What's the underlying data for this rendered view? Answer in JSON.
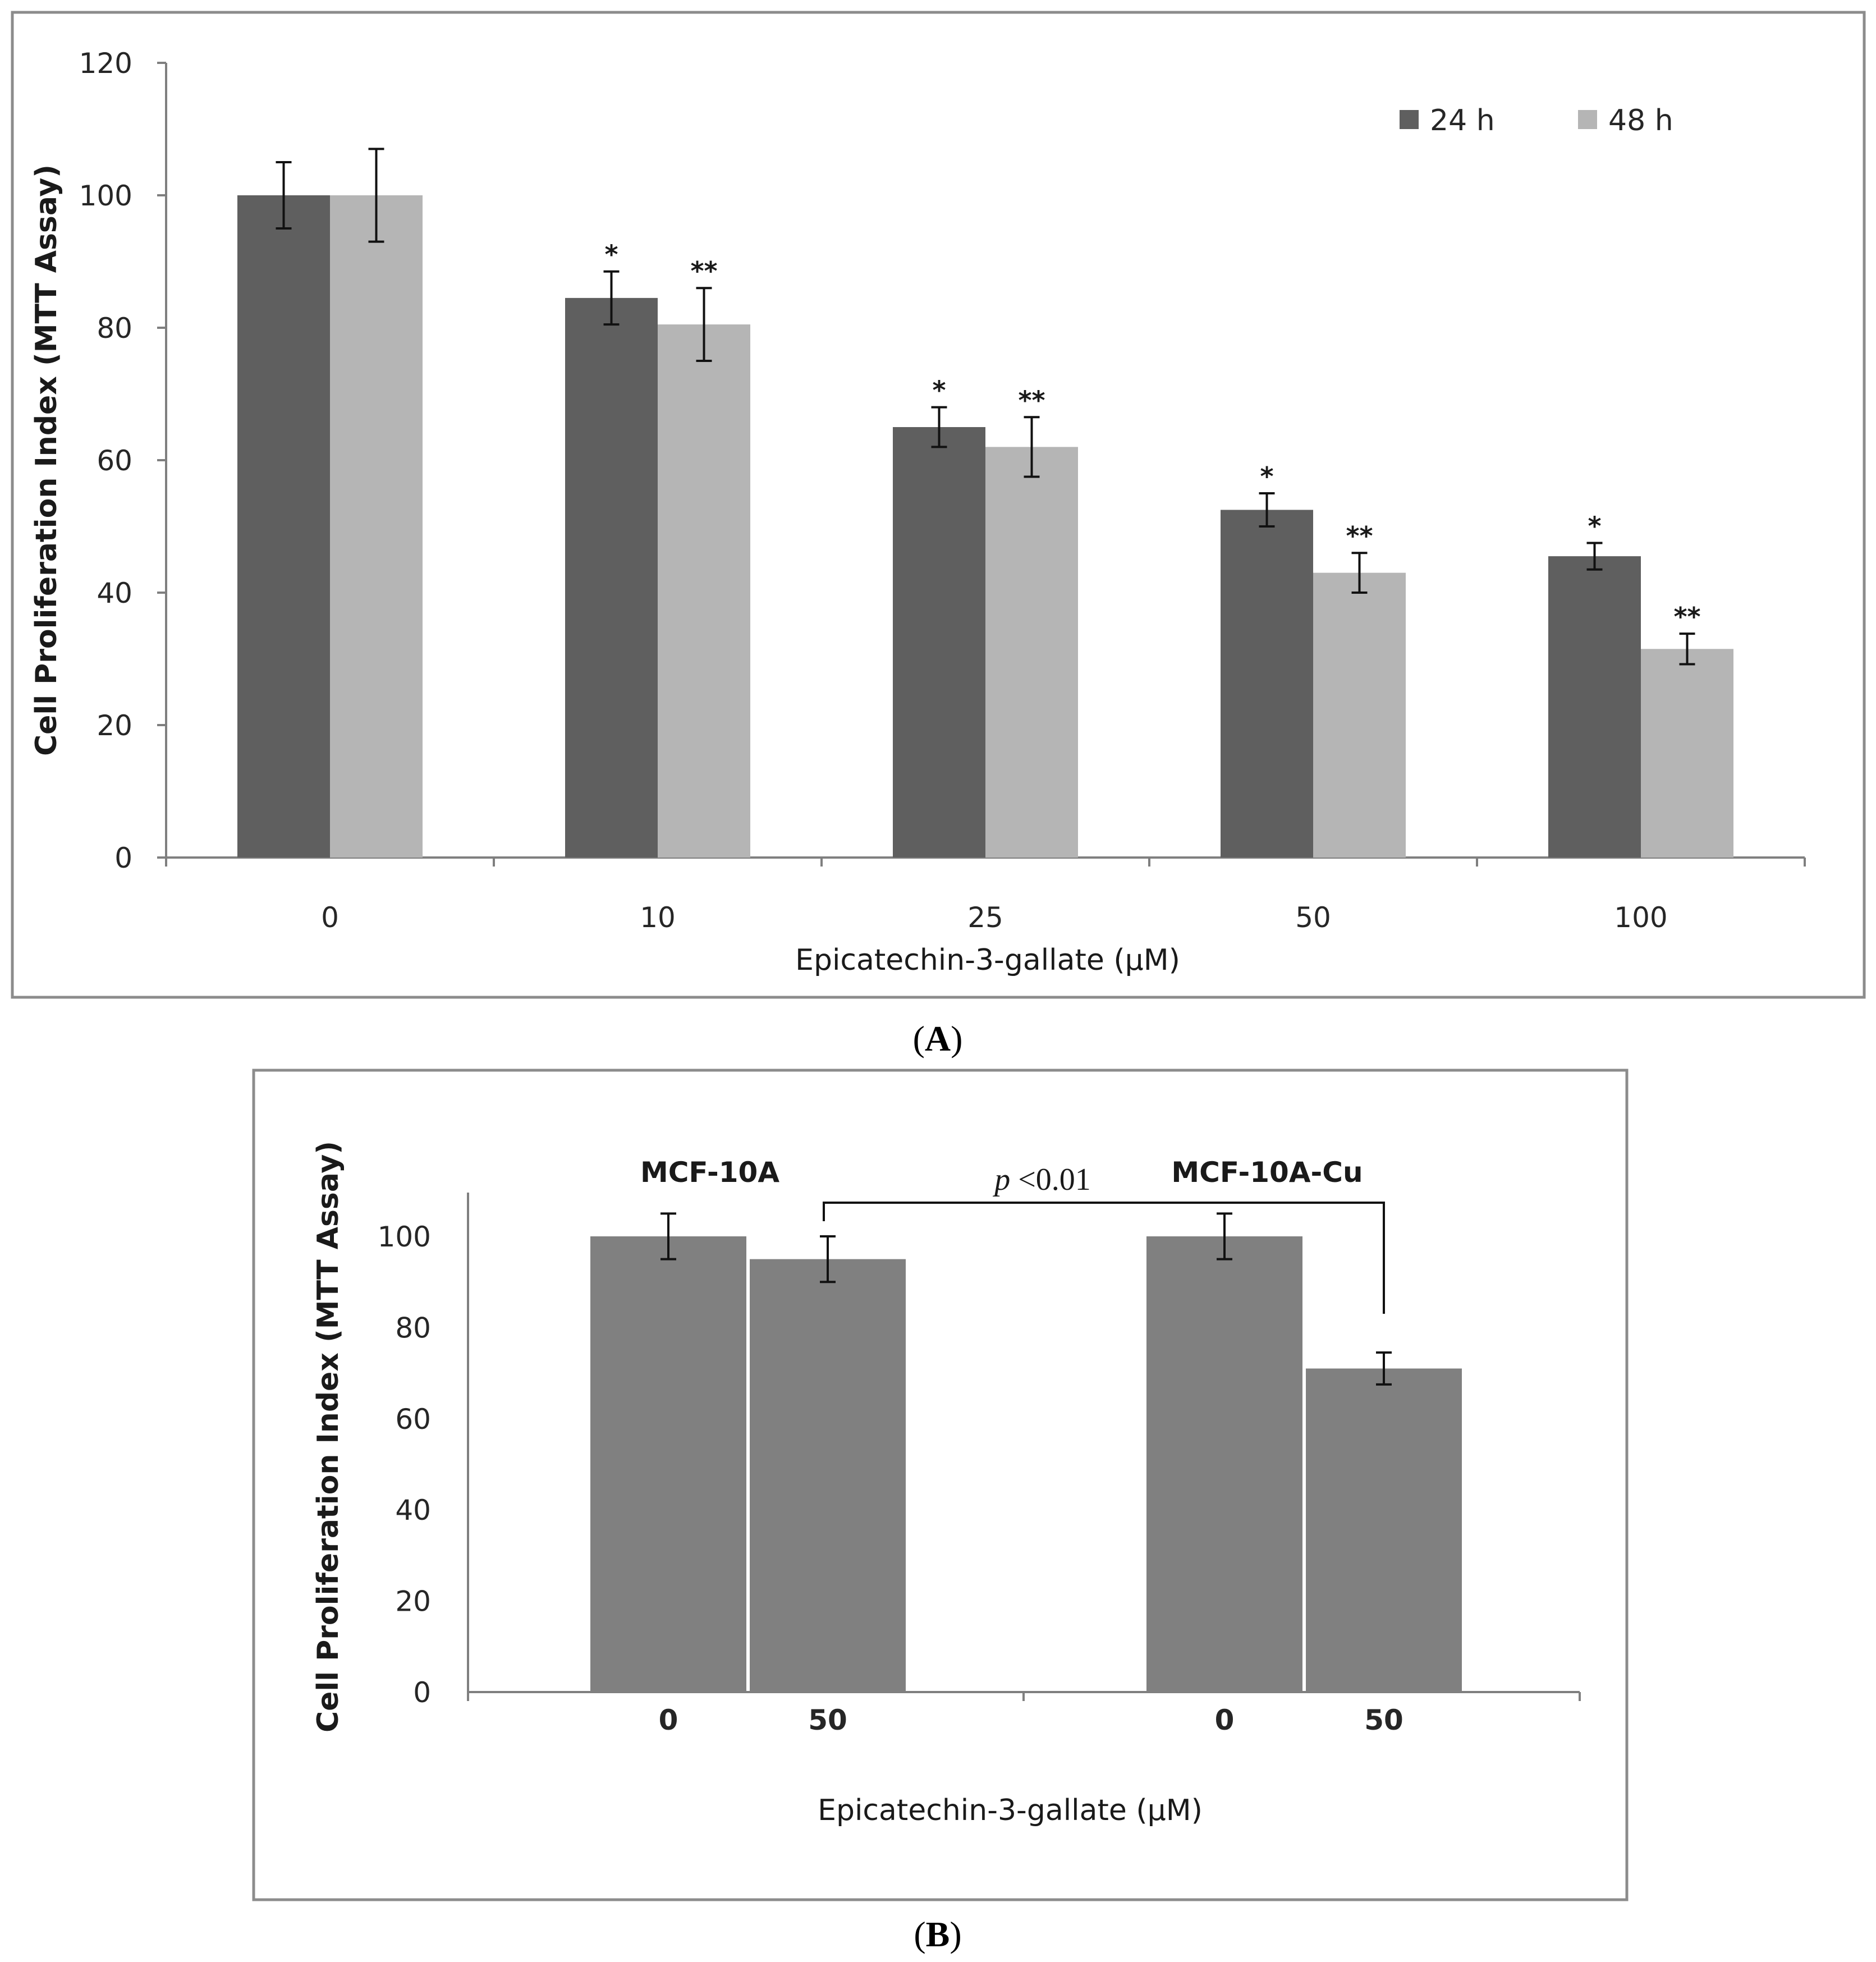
{
  "chart_data": [
    {
      "type": "bar",
      "panel": "A",
      "caption_letter": "A",
      "ylabel": "Cell Proliferation Index (MTT Assay)",
      "xlabel": "Epicatechin-3-gallate  (µM)",
      "ylim": [
        0,
        120
      ],
      "yticks": [
        0,
        20,
        40,
        60,
        80,
        100,
        120
      ],
      "categories": [
        "0",
        "10",
        "25",
        "50",
        "100"
      ],
      "legend_position": "top-right",
      "colors": {
        "24 h": "#5f5f5f",
        "48 h": "#b5b5b5"
      },
      "series": [
        {
          "name": "24 h",
          "values": [
            100,
            84.5,
            65,
            52.5,
            45.5
          ],
          "errors": [
            5,
            4,
            3,
            2.5,
            2
          ],
          "sig": [
            "",
            "*",
            "*",
            "*",
            "*"
          ]
        },
        {
          "name": "48 h",
          "values": [
            100,
            80.5,
            62,
            43,
            31.5
          ],
          "errors": [
            7,
            5.5,
            4.5,
            3,
            2.3
          ],
          "sig": [
            "",
            "**",
            "**",
            "**",
            "**"
          ]
        }
      ]
    },
    {
      "type": "bar",
      "panel": "B",
      "caption_letter": "B",
      "ylabel": "Cell Proliferation Index (MTT Assay)",
      "xlabel": "Epicatechin-3-gallate  (µM)",
      "ylim": [
        0,
        110
      ],
      "yticks": [
        0,
        20,
        40,
        60,
        80,
        100
      ],
      "color": "#808080",
      "groups": [
        {
          "label": "MCF-10A",
          "bars": [
            {
              "x": "0",
              "value": 100,
              "error": 5
            },
            {
              "x": "50",
              "value": 95,
              "error": 5
            }
          ]
        },
        {
          "label": "MCF-10A-Cu",
          "bars": [
            {
              "x": "0",
              "value": 100,
              "error": 5
            },
            {
              "x": "50",
              "value": 71,
              "error": 3.5
            }
          ]
        }
      ],
      "annotation": {
        "p_symbol": "p",
        "p_text": " <0.01"
      }
    }
  ]
}
